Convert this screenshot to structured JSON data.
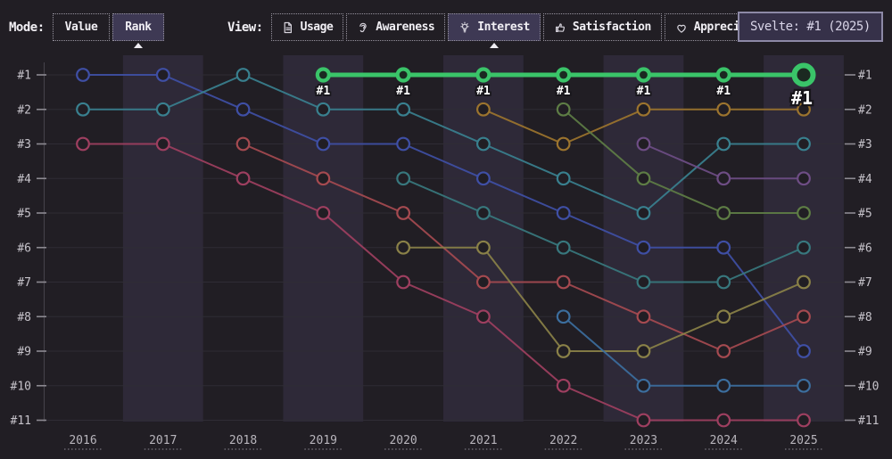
{
  "toolbar": {
    "mode_label": "Mode:",
    "view_label": "View:",
    "mode_buttons": [
      {
        "label": "Value",
        "active": false
      },
      {
        "label": "Rank",
        "active": true
      }
    ],
    "view_tabs": [
      {
        "label": "Usage",
        "icon": "document",
        "active": false
      },
      {
        "label": "Awareness",
        "icon": "ear",
        "active": false
      },
      {
        "label": "Interest",
        "icon": "lightbulb",
        "active": true
      },
      {
        "label": "Satisfaction",
        "icon": "thumbs-up",
        "active": false
      },
      {
        "label": "Appreciation",
        "icon": "heart",
        "active": false
      }
    ]
  },
  "tooltip": {
    "text": "Svelte: #1 (2025)"
  },
  "chart_data": {
    "type": "line",
    "subtype": "bump-rank",
    "x_labels": [
      "2016",
      "2017",
      "2018",
      "2019",
      "2020",
      "2021",
      "2022",
      "2023",
      "2024",
      "2025"
    ],
    "rank_labels": [
      "#1",
      "#2",
      "#3",
      "#4",
      "#5",
      "#6",
      "#7",
      "#8",
      "#9",
      "#10",
      "#11"
    ],
    "grid": true,
    "band_color": "#2e2938",
    "grid_color": "#2f2c35",
    "axis_color": "#46434c",
    "tick_color": "#8d8a92",
    "rank_label_color": "#c6c3ca",
    "year_label_color": "#b8b5bc",
    "marker_fill": "#211e24",
    "highlight_point_label": "#1",
    "highlighted_series": "Svelte",
    "series": [
      {
        "name": "indigo-series",
        "color": "#3f4fa5",
        "ranks": [
          1,
          1,
          2,
          3,
          3,
          4,
          5,
          6,
          6,
          9
        ]
      },
      {
        "name": "teal-series",
        "color": "#39808f",
        "ranks": [
          2,
          2,
          1,
          2,
          2,
          3,
          4,
          5,
          3,
          3
        ]
      },
      {
        "name": "crimson-series",
        "color": "#9e3f60",
        "ranks": [
          3,
          3,
          4,
          5,
          7,
          8,
          10,
          11,
          11,
          11
        ]
      },
      {
        "name": "brick-series",
        "color": "#a54a50",
        "ranks": [
          null,
          null,
          3,
          4,
          5,
          7,
          7,
          8,
          9,
          8
        ]
      },
      {
        "name": "dark-teal-series",
        "color": "#38787e",
        "ranks": [
          null,
          null,
          null,
          null,
          4,
          5,
          6,
          7,
          7,
          6
        ]
      },
      {
        "name": "olive-series",
        "color": "#8a8148",
        "ranks": [
          null,
          null,
          null,
          null,
          6,
          6,
          9,
          9,
          8,
          7
        ]
      },
      {
        "name": "amber-series",
        "color": "#9c742e",
        "ranks": [
          null,
          null,
          null,
          null,
          null,
          2,
          3,
          2,
          2,
          2
        ]
      },
      {
        "name": "green-olive-series",
        "color": "#5e7d45",
        "ranks": [
          null,
          null,
          null,
          null,
          null,
          null,
          2,
          4,
          5,
          5
        ]
      },
      {
        "name": "steel-blue-series",
        "color": "#3c6e9e",
        "ranks": [
          null,
          null,
          null,
          null,
          null,
          null,
          8,
          10,
          10,
          10
        ]
      },
      {
        "name": "violet-series",
        "color": "#6e4d85",
        "ranks": [
          null,
          null,
          null,
          null,
          null,
          null,
          null,
          3,
          4,
          4
        ]
      },
      {
        "name": "Svelte",
        "color": "#3ac469",
        "highlight": true,
        "ranks": [
          null,
          null,
          null,
          1,
          1,
          1,
          1,
          1,
          1,
          1
        ]
      }
    ]
  }
}
